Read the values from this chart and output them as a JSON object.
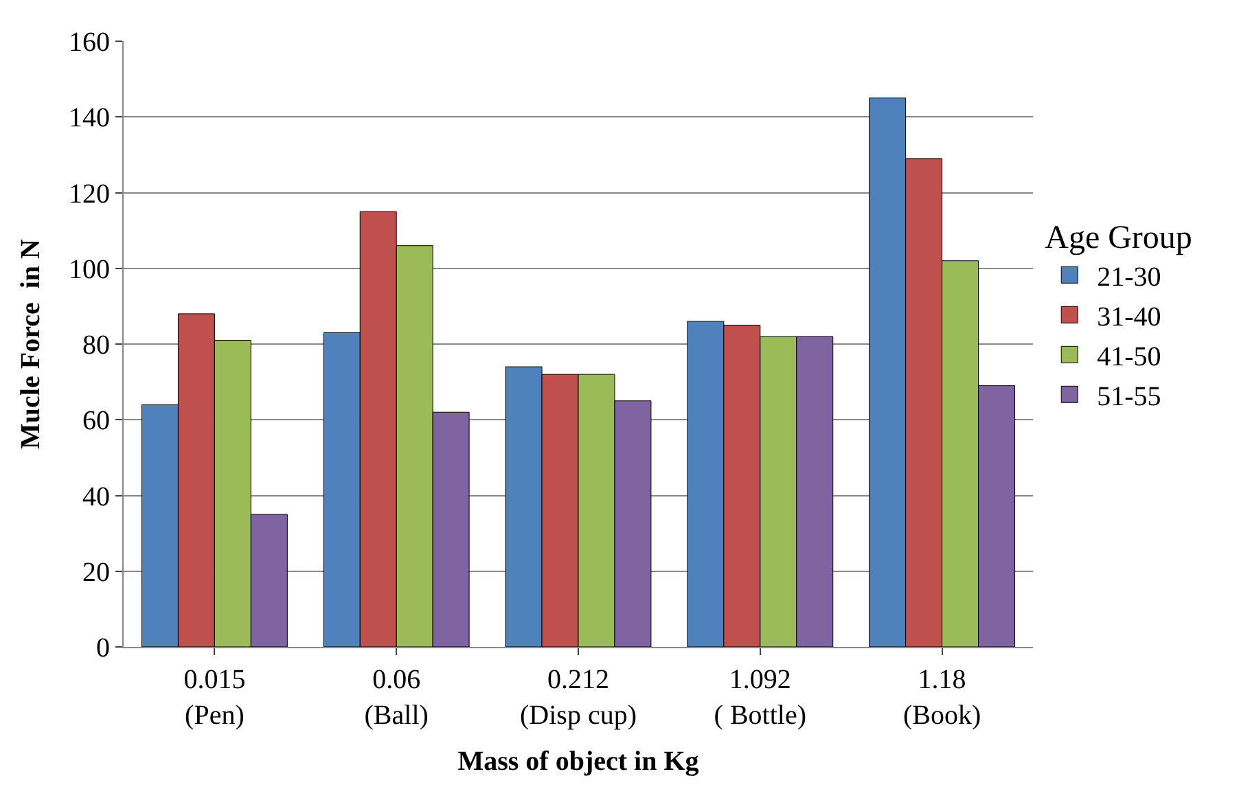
{
  "chart_data": {
    "type": "bar",
    "xlabel": "Mass of object in Kg",
    "ylabel": "Mucle Force  in N",
    "legend_title": "Age Group",
    "categories": [
      "0.015\n(Pen)",
      "0.06\n(Ball)",
      "0.212\n(Disp cup)",
      "1.092\n( Bottle)",
      "1.18\n(Book)"
    ],
    "series": [
      {
        "name": "21-30",
        "color": "#4f81bd",
        "values": [
          64,
          83,
          74,
          86,
          145
        ]
      },
      {
        "name": "31-40",
        "color": "#c0504d",
        "values": [
          88,
          115,
          72,
          85,
          129
        ]
      },
      {
        "name": "41-50",
        "color": "#9bbb59",
        "values": [
          81,
          106,
          72,
          82,
          102
        ]
      },
      {
        "name": "51-55",
        "color": "#8064a2",
        "values": [
          35,
          62,
          65,
          82,
          69
        ]
      }
    ],
    "ylim": [
      0,
      160
    ],
    "yticks": [
      0,
      20,
      40,
      60,
      80,
      100,
      120,
      140,
      160
    ],
    "grid": "y",
    "legend": "right"
  }
}
